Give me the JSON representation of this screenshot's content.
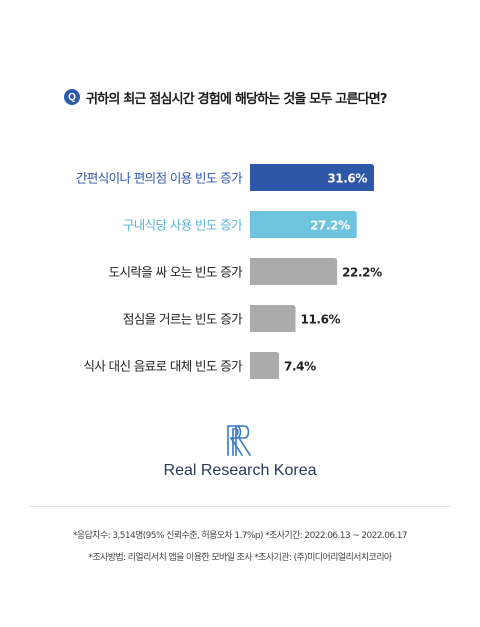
{
  "question": {
    "badge": "Q",
    "text": "귀하의 최근 점심시간 경험에 해당하는 것을 모두 고른다면?"
  },
  "chart_data": {
    "type": "bar",
    "orientation": "horizontal",
    "categories": [
      "간편식이나 편의점 이용 빈도 증가",
      "구내식당 사용 빈도 증가",
      "도시락을 싸 오는 빈도 증가",
      "점심을 거르는 빈도 증가",
      "식사 대신 음료로 대체 빈도 증가"
    ],
    "values": [
      31.6,
      27.2,
      22.2,
      11.6,
      7.4
    ],
    "value_labels": [
      "31.6%",
      "27.2%",
      "22.2%",
      "11.6%",
      "7.4%"
    ],
    "colors": [
      "#2f57a8",
      "#6ec4df",
      "#ababab",
      "#ababab",
      "#ababab"
    ],
    "label_colors": [
      "#2f57a8",
      "#5bb5d6",
      "#222222",
      "#222222",
      "#222222"
    ],
    "value_label_position": [
      "inside",
      "inside",
      "outside",
      "outside",
      "outside"
    ],
    "grid": false
  },
  "brand": {
    "name": "Real Research Korea",
    "logo_icon": "rr-monogram-icon",
    "logo_color": "#3a78c2"
  },
  "footnotes": {
    "line1": "*응답자수: 3,514명(95% 신뢰수준, 허용오차 1.7%p)  *조사기간: 2022.06.13 ~ 2022.06.17",
    "line2": "*조사방법: 리얼리서치 앱을 이용한 모바일 조사  *조사기관: (주)미디어리얼리서치코리아"
  }
}
